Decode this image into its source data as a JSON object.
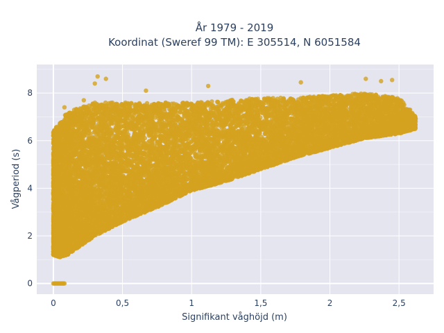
{
  "title_line1": "År 1979 - 2019",
  "title_line2": "Koordinat (Sweref 99 TM): E 305514, N 6051584",
  "chart_data": {
    "type": "scatter",
    "xlabel": "Signifikant våghöjd (m)",
    "ylabel": "Vågperiod (s)",
    "xlim": [
      -0.12,
      2.75
    ],
    "ylim": [
      -0.45,
      9.2
    ],
    "x_ticks": [
      0,
      0.5,
      1,
      1.5,
      2,
      2.5
    ],
    "x_tick_labels": [
      "0",
      "0,5",
      "1",
      "1,5",
      "2",
      "2,5"
    ],
    "y_ticks": [
      0,
      2,
      4,
      6,
      8
    ],
    "y_tick_labels": [
      "0",
      "2",
      "4",
      "6",
      "8"
    ],
    "grid": true,
    "series": [
      {
        "color": "#d4a31f",
        "point_count": 14000,
        "envelope": {
          "lower": [
            [
              0.0,
              1.2
            ],
            [
              0.05,
              1.1
            ],
            [
              0.1,
              1.2
            ],
            [
              0.2,
              1.6
            ],
            [
              0.3,
              2.0
            ],
            [
              0.5,
              2.6
            ],
            [
              0.75,
              3.2
            ],
            [
              1.0,
              3.9
            ],
            [
              1.25,
              4.3
            ],
            [
              1.5,
              4.8
            ],
            [
              1.75,
              5.3
            ],
            [
              2.0,
              5.7
            ],
            [
              2.25,
              6.1
            ],
            [
              2.5,
              6.3
            ],
            [
              2.62,
              6.5
            ]
          ],
          "upper": [
            [
              0.0,
              6.4
            ],
            [
              0.05,
              6.8
            ],
            [
              0.1,
              7.2
            ],
            [
              0.2,
              7.4
            ],
            [
              0.3,
              7.6
            ],
            [
              0.5,
              7.6
            ],
            [
              0.75,
              7.6
            ],
            [
              1.0,
              7.6
            ],
            [
              1.25,
              7.7
            ],
            [
              1.5,
              7.8
            ],
            [
              1.75,
              7.8
            ],
            [
              2.0,
              7.9
            ],
            [
              2.25,
              8.0
            ],
            [
              2.5,
              7.8
            ],
            [
              2.62,
              7.0
            ]
          ]
        },
        "outliers": [
          [
            0.32,
            8.7
          ],
          [
            0.38,
            8.6
          ],
          [
            0.3,
            8.4
          ],
          [
            0.67,
            8.1
          ],
          [
            1.12,
            8.3
          ],
          [
            2.26,
            8.6
          ],
          [
            2.37,
            8.5
          ],
          [
            2.45,
            8.55
          ],
          [
            1.79,
            8.45
          ],
          [
            2.58,
            7.3
          ],
          [
            2.62,
            6.8
          ],
          [
            2.5,
            6.35
          ],
          [
            0.02,
            6.5
          ],
          [
            0.08,
            7.4
          ],
          [
            0.22,
            7.7
          ]
        ],
        "zero_cluster": {
          "x_range": [
            0.0,
            0.08
          ],
          "y": 0
        }
      }
    ]
  }
}
